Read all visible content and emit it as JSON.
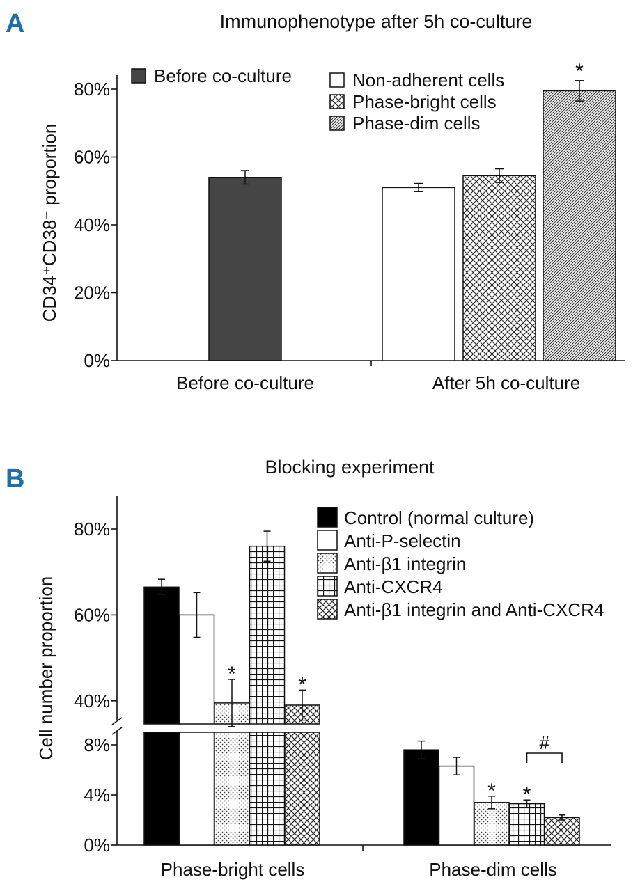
{
  "panels": {
    "a_letter": "A",
    "b_letter": "B"
  },
  "chart_data": [
    {
      "type": "bar",
      "title": "Immunophenotype after 5h co-culture",
      "ylabel": "CD34⁺CD38⁻ proportion",
      "xlabel": "",
      "ylim": [
        0,
        80
      ],
      "yticks": [
        "0%",
        "20%",
        "40%",
        "60%",
        "80%"
      ],
      "categories": [
        "Before co-culture",
        "After 5h co-culture"
      ],
      "series": [
        {
          "name": "Before co-culture",
          "category": "Before co-culture",
          "value": 54,
          "error": 2,
          "pattern": "solid-dark",
          "annotation": ""
        },
        {
          "name": "Non-adherent cells",
          "category": "After 5h co-culture",
          "value": 51,
          "error": 1.2,
          "pattern": "white",
          "annotation": ""
        },
        {
          "name": "Phase-bright cells",
          "category": "After 5h co-culture",
          "value": 54.5,
          "error": 2,
          "pattern": "crosshatch",
          "annotation": ""
        },
        {
          "name": "Phase-dim cells",
          "category": "After 5h co-culture",
          "value": 79.5,
          "error": 3,
          "pattern": "diagonal",
          "annotation": "*"
        }
      ]
    },
    {
      "type": "bar",
      "title": "Blocking experiment",
      "ylabel": "Cell number proportion",
      "xlabel": "",
      "axis_break": true,
      "lower_segment": {
        "ylim": [
          0,
          9
        ],
        "yticks": [
          "0%",
          "4%",
          "8%"
        ]
      },
      "upper_segment": {
        "ylim": [
          33,
          88
        ],
        "yticks": [
          "40%",
          "60%",
          "80%"
        ]
      },
      "categories": [
        "Phase-bright cells",
        "Phase-dim cells"
      ],
      "series": [
        {
          "name": "Control (normal culture)",
          "pattern": "solid-black",
          "values": [
            66.5,
            7.6
          ],
          "errors": [
            1.8,
            0.7
          ],
          "annotations": [
            "",
            ""
          ]
        },
        {
          "name": "Anti-P-selectin",
          "pattern": "white",
          "values": [
            60,
            6.3
          ],
          "errors": [
            5.2,
            0.7
          ],
          "annotations": [
            "",
            ""
          ]
        },
        {
          "name": "Anti-β1 integrin",
          "pattern": "dots",
          "values": [
            39.5,
            3.4
          ],
          "errors": [
            5.5,
            0.5
          ],
          "annotations": [
            "*",
            "*"
          ]
        },
        {
          "name": "Anti-CXCR4",
          "pattern": "grid",
          "values": [
            76,
            3.3
          ],
          "errors": [
            3.5,
            0.3
          ],
          "annotations": [
            "",
            "*"
          ]
        },
        {
          "name": "Anti-β1 integrin and Anti-CXCR4",
          "pattern": "crosshatch",
          "values": [
            39,
            2.2
          ],
          "errors": [
            3.5,
            0.2
          ],
          "annotations": [
            "*",
            ""
          ]
        }
      ],
      "bracket": {
        "label": "#",
        "category": "Phase-dim cells",
        "from_series": "Anti-CXCR4",
        "to_series": "Anti-β1 integrin and Anti-CXCR4"
      }
    }
  ]
}
